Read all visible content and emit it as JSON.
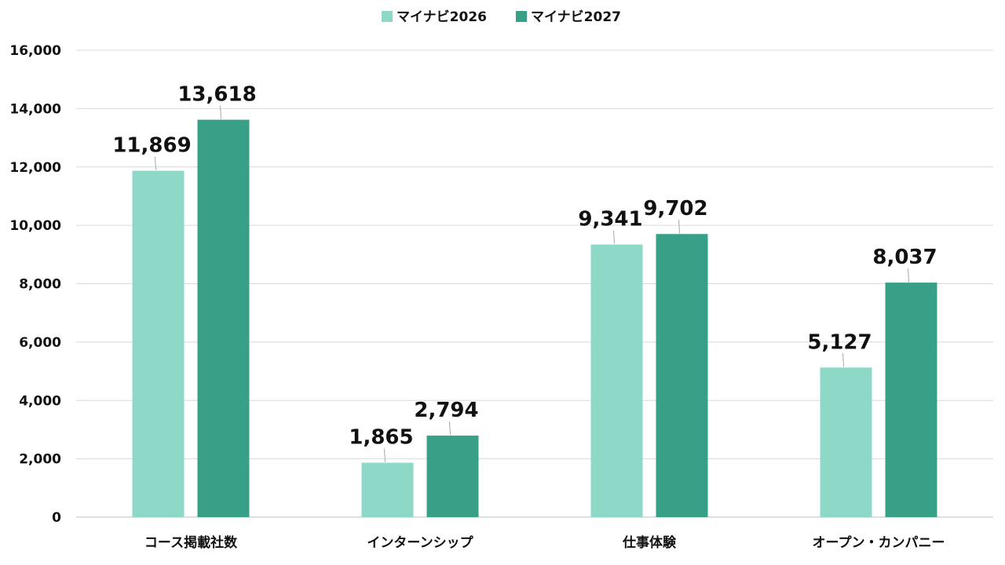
{
  "chart_data": {
    "type": "bar",
    "categories": [
      "コース掲載社数",
      "インターンシップ",
      "仕事体験",
      "オープン・カンパニー"
    ],
    "series": [
      {
        "name": "マイナビ2026",
        "values": [
          11869,
          1865,
          9341,
          5127
        ],
        "labels": [
          "11,869",
          "1,865",
          "9,341",
          "5,127"
        ],
        "color": "#8ed8c7"
      },
      {
        "name": "マイナビ2027",
        "values": [
          13618,
          2794,
          9702,
          8037
        ],
        "labels": [
          "13,618",
          "2,794",
          "9,702",
          "8,037"
        ],
        "color": "#37a087"
      }
    ],
    "yticks": [
      0,
      2000,
      4000,
      6000,
      8000,
      10000,
      12000,
      14000,
      16000
    ],
    "ytick_labels": [
      "0",
      "2,000",
      "4,000",
      "6,000",
      "8,000",
      "10,000",
      "12,000",
      "14,000",
      "16,000"
    ],
    "ylim": [
      0,
      16000
    ],
    "title": "",
    "xlabel": "",
    "ylabel": "",
    "grid": true,
    "legend_position": "top-center"
  }
}
